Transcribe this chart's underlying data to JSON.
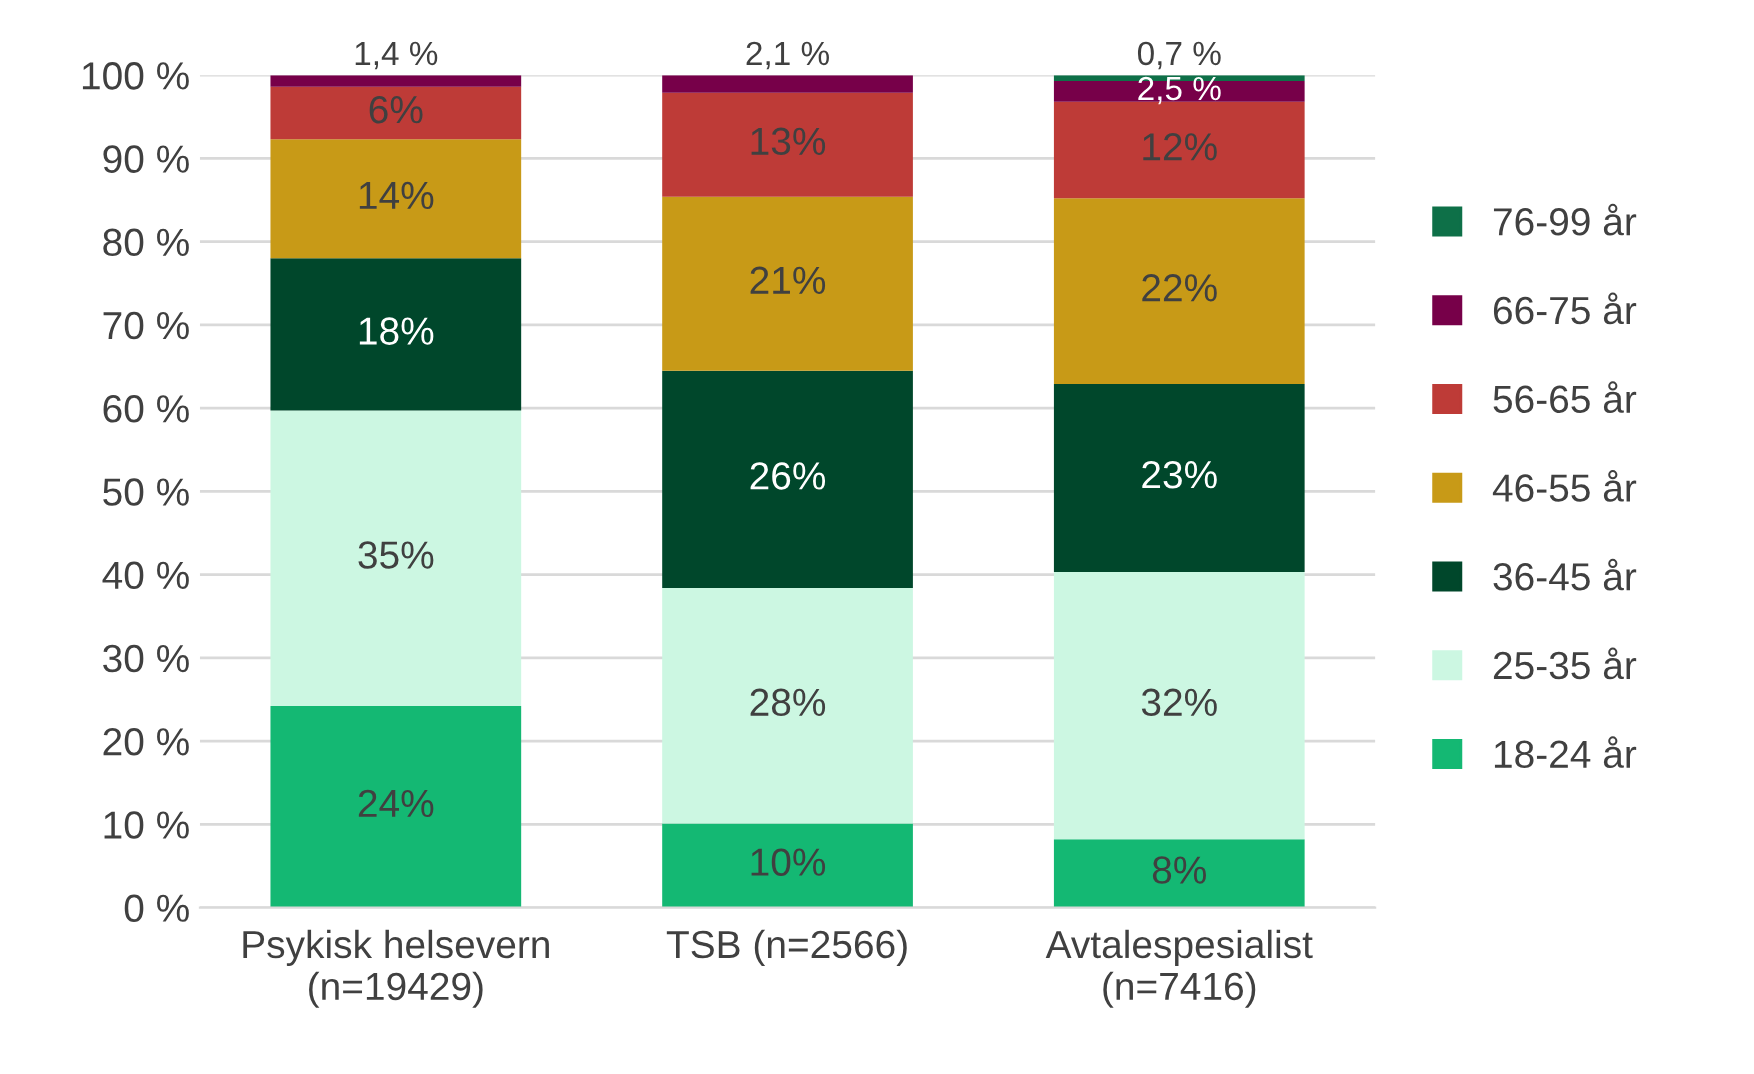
{
  "chart_data": {
    "type": "bar",
    "stacked": true,
    "categories": [
      "Psykisk helsevern\n(n=19429)",
      "TSB (n=2566)",
      "Avtalespesialist\n(n=7416)"
    ],
    "series": [
      {
        "name": "18-24 år",
        "color": "#14b873",
        "values": [
          24.2,
          10.1,
          8.2
        ],
        "value_labels": [
          "24%",
          "10%",
          "8%"
        ]
      },
      {
        "name": "25-35 år",
        "color": "#ccf7e2",
        "values": [
          35.5,
          28.3,
          32.1
        ],
        "value_labels": [
          "35%",
          "28%",
          "32%"
        ]
      },
      {
        "name": "36-45 år",
        "color": "#00472b",
        "values": [
          18.3,
          26.1,
          22.6
        ],
        "value_labels": [
          "18%",
          "26%",
          "23%"
        ]
      },
      {
        "name": "46-55 år",
        "color": "#c89a17",
        "values": [
          14.3,
          20.9,
          22.3
        ],
        "value_labels": [
          "14%",
          "21%",
          "22%"
        ]
      },
      {
        "name": "56-65 år",
        "color": "#be3b37",
        "values": [
          6.3,
          12.5,
          11.6
        ],
        "value_labels": [
          "6%",
          "13%",
          "12%"
        ]
      },
      {
        "name": "66-75 år",
        "color": "#770049",
        "values": [
          1.4,
          2.1,
          2.5
        ],
        "value_labels": [
          "1,4 %",
          "2,1 %",
          "2,5 %"
        ]
      },
      {
        "name": "76-99 år",
        "color": "#0e7048",
        "values": [
          null,
          null,
          0.7
        ],
        "value_labels": [
          null,
          null,
          "0,7 %"
        ]
      }
    ],
    "ylim": [
      0,
      100
    ],
    "yticks": [
      {
        "value": 0,
        "label": "0 %"
      },
      {
        "value": 10,
        "label": "10 %"
      },
      {
        "value": 20,
        "label": "20 %"
      },
      {
        "value": 30,
        "label": "30 %"
      },
      {
        "value": 40,
        "label": "40 %"
      },
      {
        "value": 50,
        "label": "50 %"
      },
      {
        "value": 60,
        "label": "60 %"
      },
      {
        "value": 70,
        "label": "70 %"
      },
      {
        "value": 80,
        "label": "80 %"
      },
      {
        "value": 90,
        "label": "90 %"
      },
      {
        "value": 100,
        "label": "100 %"
      }
    ],
    "grid": "y",
    "legend": "right"
  }
}
